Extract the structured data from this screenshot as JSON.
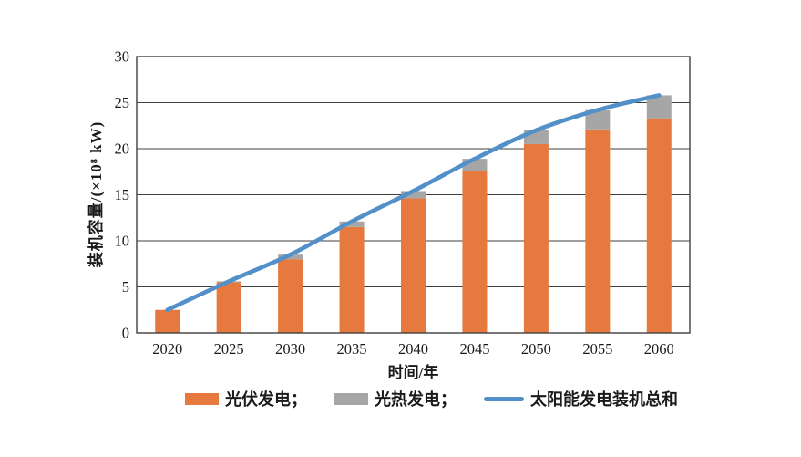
{
  "figure": {
    "background": "#ffffff",
    "text_color": "#1a1a1a",
    "grid_color": "#3f3f3f"
  },
  "chart_data": {
    "type": "stacked-bar+line",
    "title": "",
    "xlabel": "时间/年",
    "ylabel": "装机容量/(×10⁸ kW)",
    "categories": [
      "2020",
      "2025",
      "2030",
      "2035",
      "2040",
      "2045",
      "2050",
      "2055",
      "2060"
    ],
    "series": [
      {
        "name": "光伏发电",
        "type": "bar",
        "color": "#E5793E",
        "values": [
          2.5,
          5.5,
          8.0,
          11.5,
          14.6,
          17.6,
          20.5,
          22.1,
          23.3
        ]
      },
      {
        "name": "光热发电",
        "type": "bar",
        "color": "#A6A6A6",
        "values": [
          0,
          0.1,
          0.5,
          0.6,
          0.8,
          1.3,
          1.5,
          2.1,
          2.5
        ]
      },
      {
        "name": "太阳能发电装机总和",
        "type": "line",
        "color": "#5390C9",
        "values": [
          2.5,
          5.6,
          8.5,
          12.1,
          15.4,
          18.9,
          22.0,
          24.2,
          25.8
        ]
      }
    ],
    "ylim": [
      0,
      30
    ],
    "yticks": [
      0,
      5,
      10,
      15,
      20,
      25,
      30
    ],
    "grid": true,
    "legend_position": "bottom"
  },
  "legend": {
    "items": [
      {
        "label": "光伏发电；",
        "swatch": "bar",
        "color": "#E5793E"
      },
      {
        "label": "光热发电；",
        "swatch": "bar",
        "color": "#A6A6A6"
      },
      {
        "label": "太阳能发电装机总和",
        "swatch": "line",
        "color": "#5390C9"
      }
    ]
  }
}
